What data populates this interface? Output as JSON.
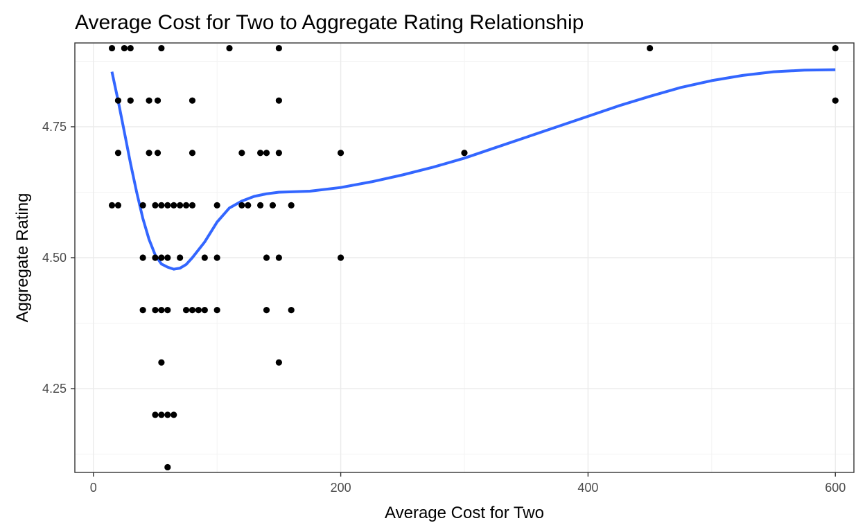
{
  "chart_data": {
    "type": "scatter",
    "title": "Average Cost for Two to Aggregate Rating Relationship",
    "xlabel": "Average Cost for Two",
    "ylabel": "Aggregate Rating",
    "xlim": [
      -15,
      615
    ],
    "ylim": [
      4.09,
      4.91
    ],
    "x_ticks": [
      0,
      200,
      400,
      600
    ],
    "x_tick_labels": [
      "0",
      "200",
      "400",
      "600"
    ],
    "y_ticks": [
      4.25,
      4.5,
      4.75
    ],
    "y_tick_labels": [
      "4.25",
      "4.50",
      "4.75"
    ],
    "grid": true,
    "legend": "none",
    "point_color": "#000000",
    "smooth_color": "#3366FF",
    "points": [
      [
        15,
        4.9
      ],
      [
        25,
        4.9
      ],
      [
        30,
        4.9
      ],
      [
        55,
        4.9
      ],
      [
        110,
        4.9
      ],
      [
        150,
        4.9
      ],
      [
        450,
        4.9
      ],
      [
        600,
        4.9
      ],
      [
        20,
        4.8
      ],
      [
        30,
        4.8
      ],
      [
        45,
        4.8
      ],
      [
        52,
        4.8
      ],
      [
        80,
        4.8
      ],
      [
        150,
        4.8
      ],
      [
        600,
        4.8
      ],
      [
        20,
        4.7
      ],
      [
        45,
        4.7
      ],
      [
        52,
        4.7
      ],
      [
        80,
        4.7
      ],
      [
        120,
        4.7
      ],
      [
        135,
        4.7
      ],
      [
        140,
        4.7
      ],
      [
        150,
        4.7
      ],
      [
        200,
        4.7
      ],
      [
        300,
        4.7
      ],
      [
        15,
        4.6
      ],
      [
        20,
        4.6
      ],
      [
        40,
        4.6
      ],
      [
        50,
        4.6
      ],
      [
        55,
        4.6
      ],
      [
        60,
        4.6
      ],
      [
        65,
        4.6
      ],
      [
        70,
        4.6
      ],
      [
        75,
        4.6
      ],
      [
        80,
        4.6
      ],
      [
        100,
        4.6
      ],
      [
        120,
        4.6
      ],
      [
        125,
        4.6
      ],
      [
        135,
        4.6
      ],
      [
        145,
        4.6
      ],
      [
        160,
        4.6
      ],
      [
        40,
        4.5
      ],
      [
        50,
        4.5
      ],
      [
        55,
        4.5
      ],
      [
        60,
        4.5
      ],
      [
        70,
        4.5
      ],
      [
        90,
        4.5
      ],
      [
        100,
        4.5
      ],
      [
        140,
        4.5
      ],
      [
        150,
        4.5
      ],
      [
        200,
        4.5
      ],
      [
        40,
        4.4
      ],
      [
        50,
        4.4
      ],
      [
        55,
        4.4
      ],
      [
        60,
        4.4
      ],
      [
        75,
        4.4
      ],
      [
        80,
        4.4
      ],
      [
        85,
        4.4
      ],
      [
        90,
        4.4
      ],
      [
        100,
        4.4
      ],
      [
        140,
        4.4
      ],
      [
        160,
        4.4
      ],
      [
        55,
        4.3
      ],
      [
        150,
        4.3
      ],
      [
        50,
        4.2
      ],
      [
        55,
        4.2
      ],
      [
        60,
        4.2
      ],
      [
        65,
        4.2
      ],
      [
        60,
        4.1
      ]
    ],
    "smooth_line": [
      [
        15,
        4.855
      ],
      [
        20,
        4.8
      ],
      [
        25,
        4.74
      ],
      [
        30,
        4.68
      ],
      [
        35,
        4.625
      ],
      [
        40,
        4.575
      ],
      [
        45,
        4.535
      ],
      [
        50,
        4.505
      ],
      [
        55,
        4.488
      ],
      [
        60,
        4.482
      ],
      [
        65,
        4.478
      ],
      [
        70,
        4.48
      ],
      [
        75,
        4.487
      ],
      [
        80,
        4.5
      ],
      [
        90,
        4.53
      ],
      [
        100,
        4.568
      ],
      [
        110,
        4.595
      ],
      [
        120,
        4.608
      ],
      [
        130,
        4.617
      ],
      [
        140,
        4.622
      ],
      [
        150,
        4.625
      ],
      [
        175,
        4.627
      ],
      [
        200,
        4.634
      ],
      [
        225,
        4.645
      ],
      [
        250,
        4.658
      ],
      [
        275,
        4.673
      ],
      [
        300,
        4.69
      ],
      [
        325,
        4.71
      ],
      [
        350,
        4.73
      ],
      [
        375,
        4.75
      ],
      [
        400,
        4.77
      ],
      [
        425,
        4.79
      ],
      [
        450,
        4.808
      ],
      [
        475,
        4.825
      ],
      [
        500,
        4.838
      ],
      [
        525,
        4.848
      ],
      [
        550,
        4.855
      ],
      [
        575,
        4.858
      ],
      [
        600,
        4.859
      ]
    ]
  }
}
